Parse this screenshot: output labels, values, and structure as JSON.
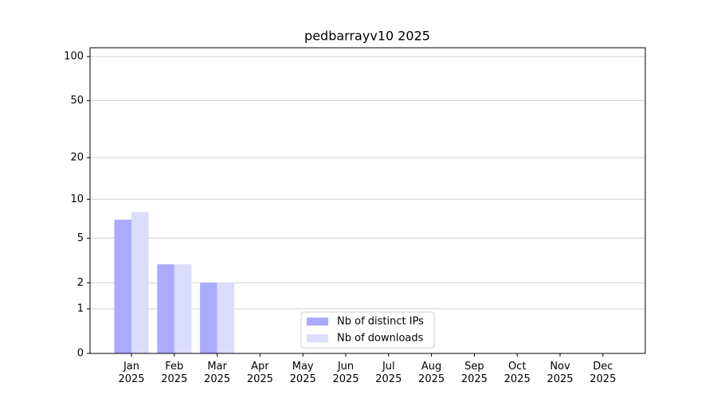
{
  "chart_data": {
    "type": "bar",
    "title": "pedbarrayv10 2025",
    "categories": [
      "Jan 2025",
      "Feb 2025",
      "Mar 2025",
      "Apr 2025",
      "May 2025",
      "Jun 2025",
      "Jul 2025",
      "Aug 2025",
      "Sep 2025",
      "Oct 2025",
      "Nov 2025",
      "Dec 2025"
    ],
    "series": [
      {
        "name": "Nb of distinct IPs",
        "color": "#aaaaff",
        "values": [
          7,
          3,
          2,
          0,
          0,
          0,
          0,
          0,
          0,
          0,
          0,
          0
        ]
      },
      {
        "name": "Nb of downloads",
        "color": "#dcdcfc",
        "values": [
          8,
          3,
          2,
          0,
          0,
          0,
          0,
          0,
          0,
          0,
          0,
          0
        ]
      }
    ],
    "yscale": "log1p",
    "ylim": [
      0,
      115
    ],
    "yticks": [
      0,
      1,
      2,
      5,
      10,
      20,
      50,
      100
    ],
    "grid": true,
    "legend": "lower center"
  }
}
